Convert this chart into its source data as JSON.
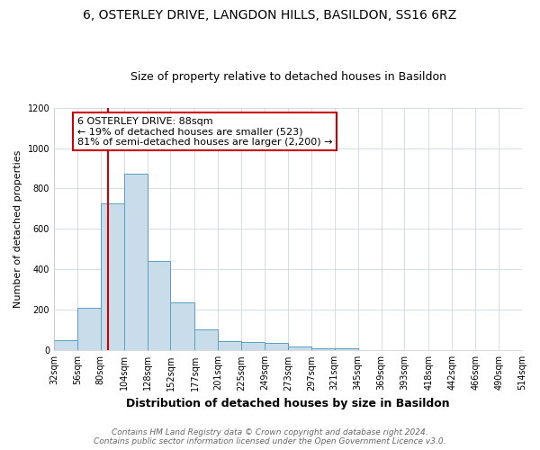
{
  "title": "6, OSTERLEY DRIVE, LANGDON HILLS, BASILDON, SS16 6RZ",
  "subtitle": "Size of property relative to detached houses in Basildon",
  "xlabel": "Distribution of detached houses by size in Basildon",
  "ylabel": "Number of detached properties",
  "bin_edges": [
    32,
    56,
    80,
    104,
    128,
    152,
    177,
    201,
    225,
    249,
    273,
    297,
    321,
    345,
    369,
    393,
    418,
    442,
    466,
    490,
    514
  ],
  "bar_heights": [
    50,
    210,
    725,
    875,
    440,
    235,
    105,
    45,
    40,
    35,
    20,
    10,
    10,
    0,
    0,
    0,
    0,
    0,
    0,
    0
  ],
  "bar_color": "#c9dcea",
  "bar_edge_color": "#5a9fc5",
  "property_size": 88,
  "vline_color": "#cc0000",
  "annotation_text": "6 OSTERLEY DRIVE: 88sqm\n← 19% of detached houses are smaller (523)\n81% of semi-detached houses are larger (2,200) →",
  "annotation_box_color": "#cc0000",
  "annotation_text_color": "#000000",
  "ylim": [
    0,
    1200
  ],
  "yticks": [
    0,
    200,
    400,
    600,
    800,
    1000,
    1200
  ],
  "footer_line1": "Contains HM Land Registry data © Crown copyright and database right 2024.",
  "footer_line2": "Contains public sector information licensed under the Open Government Licence v3.0.",
  "title_fontsize": 10,
  "subtitle_fontsize": 9,
  "xlabel_fontsize": 9,
  "ylabel_fontsize": 8,
  "footer_fontsize": 6.5,
  "tick_label_fontsize": 7,
  "annotation_fontsize": 8
}
